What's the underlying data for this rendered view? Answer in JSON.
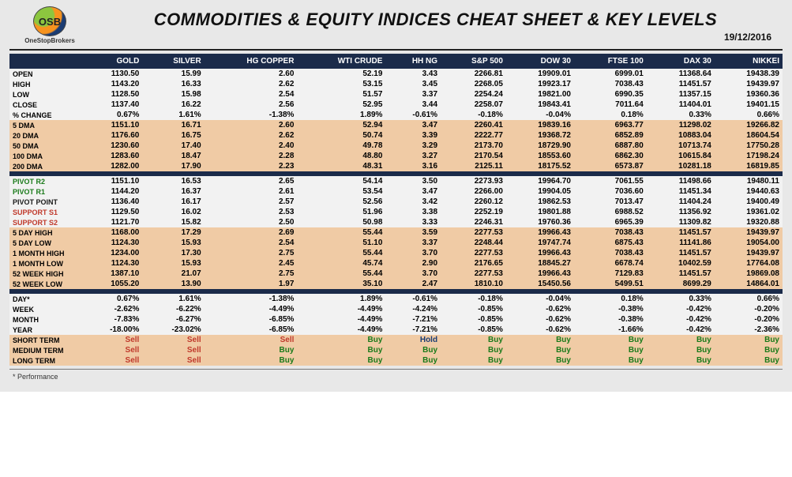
{
  "header": {
    "logo_mark": "OSB",
    "logo_sub": "OneStopBrokers",
    "title": "COMMODITIES & EQUITY INDICES CHEAT SHEET & KEY LEVELS",
    "date": "19/12/2016"
  },
  "colors": {
    "header_band": "#1b2b4a",
    "tan_row": "#f0cba5",
    "white_row": "#f2f2f2",
    "page_bg": "#e8e8e8",
    "buy": "#1a7a1a",
    "sell": "#c0392b",
    "hold": "#1b3c73"
  },
  "columns": [
    "GOLD",
    "SILVER",
    "HG COPPER",
    "WTI CRUDE",
    "HH NG",
    "S&P 500",
    "DOW 30",
    "FTSE 100",
    "DAX 30",
    "NIKKEI"
  ],
  "sections": [
    {
      "band": "white",
      "rows": [
        {
          "label": "OPEN",
          "vals": [
            "1130.50",
            "15.99",
            "2.60",
            "52.19",
            "3.43",
            "2266.81",
            "19909.01",
            "6999.01",
            "11368.64",
            "19438.39"
          ]
        },
        {
          "label": "HIGH",
          "vals": [
            "1143.20",
            "16.33",
            "2.62",
            "53.15",
            "3.45",
            "2268.05",
            "19923.17",
            "7038.43",
            "11451.57",
            "19439.97"
          ]
        },
        {
          "label": "LOW",
          "vals": [
            "1128.50",
            "15.98",
            "2.54",
            "51.57",
            "3.37",
            "2254.24",
            "19821.00",
            "6990.35",
            "11357.15",
            "19360.36"
          ]
        },
        {
          "label": "CLOSE",
          "vals": [
            "1137.40",
            "16.22",
            "2.56",
            "52.95",
            "3.44",
            "2258.07",
            "19843.41",
            "7011.64",
            "11404.01",
            "19401.15"
          ]
        },
        {
          "label": "% CHANGE",
          "vals": [
            "0.67%",
            "1.61%",
            "-1.38%",
            "1.89%",
            "-0.61%",
            "-0.18%",
            "-0.04%",
            "0.18%",
            "0.33%",
            "0.66%"
          ]
        }
      ]
    },
    {
      "band": "tan",
      "rows": [
        {
          "label": "5 DMA",
          "vals": [
            "1151.10",
            "16.71",
            "2.60",
            "52.94",
            "3.47",
            "2260.41",
            "19839.16",
            "6963.77",
            "11298.02",
            "19266.82"
          ]
        },
        {
          "label": "20 DMA",
          "vals": [
            "1176.60",
            "16.75",
            "2.62",
            "50.74",
            "3.39",
            "2222.77",
            "19368.72",
            "6852.89",
            "10883.04",
            "18604.54"
          ]
        },
        {
          "label": "50 DMA",
          "vals": [
            "1230.60",
            "17.40",
            "2.40",
            "49.78",
            "3.29",
            "2173.70",
            "18729.90",
            "6887.80",
            "10713.74",
            "17750.28"
          ]
        },
        {
          "label": "100 DMA",
          "vals": [
            "1283.60",
            "18.47",
            "2.28",
            "48.80",
            "3.27",
            "2170.54",
            "18553.60",
            "6862.30",
            "10615.84",
            "17198.24"
          ]
        },
        {
          "label": "200 DMA",
          "vals": [
            "1282.00",
            "17.90",
            "2.23",
            "48.31",
            "3.16",
            "2125.11",
            "18175.52",
            "6573.87",
            "10281.18",
            "16819.85"
          ]
        }
      ]
    },
    {
      "sep": true
    },
    {
      "band": "white",
      "rows": [
        {
          "label": "PIVOT R2",
          "label_class": "pivot-r",
          "vals": [
            "1151.10",
            "16.53",
            "2.65",
            "54.14",
            "3.50",
            "2273.93",
            "19964.70",
            "7061.55",
            "11498.66",
            "19480.11"
          ]
        },
        {
          "label": "PIVOT R1",
          "label_class": "pivot-r",
          "vals": [
            "1144.20",
            "16.37",
            "2.61",
            "53.54",
            "3.47",
            "2266.00",
            "19904.05",
            "7036.60",
            "11451.34",
            "19440.63"
          ]
        },
        {
          "label": "PIVOT POINT",
          "label_class": "pivot-p",
          "vals": [
            "1136.40",
            "16.17",
            "2.57",
            "52.56",
            "3.42",
            "2260.12",
            "19862.53",
            "7013.47",
            "11404.24",
            "19400.49"
          ]
        },
        {
          "label": "SUPPORT S1",
          "label_class": "support",
          "vals": [
            "1129.50",
            "16.02",
            "2.53",
            "51.96",
            "3.38",
            "2252.19",
            "19801.88",
            "6988.52",
            "11356.92",
            "19361.02"
          ]
        },
        {
          "label": "SUPPORT S2",
          "label_class": "support",
          "vals": [
            "1121.70",
            "15.82",
            "2.50",
            "50.98",
            "3.33",
            "2246.31",
            "19760.36",
            "6965.39",
            "11309.82",
            "19320.88"
          ]
        }
      ]
    },
    {
      "band": "tan",
      "rows": [
        {
          "label": "5 DAY HIGH",
          "vals": [
            "1168.00",
            "17.29",
            "2.69",
            "55.44",
            "3.59",
            "2277.53",
            "19966.43",
            "7038.43",
            "11451.57",
            "19439.97"
          ]
        },
        {
          "label": "5 DAY LOW",
          "vals": [
            "1124.30",
            "15.93",
            "2.54",
            "51.10",
            "3.37",
            "2248.44",
            "19747.74",
            "6875.43",
            "11141.86",
            "19054.00"
          ]
        },
        {
          "label": "1 MONTH HIGH",
          "vals": [
            "1234.00",
            "17.30",
            "2.75",
            "55.44",
            "3.70",
            "2277.53",
            "19966.43",
            "7038.43",
            "11451.57",
            "19439.97"
          ]
        },
        {
          "label": "1 MONTH LOW",
          "vals": [
            "1124.30",
            "15.93",
            "2.45",
            "45.74",
            "2.90",
            "2176.65",
            "18845.27",
            "6678.74",
            "10402.59",
            "17764.08"
          ]
        },
        {
          "label": "52 WEEK HIGH",
          "vals": [
            "1387.10",
            "21.07",
            "2.75",
            "55.44",
            "3.70",
            "2277.53",
            "19966.43",
            "7129.83",
            "11451.57",
            "19869.08"
          ]
        },
        {
          "label": "52 WEEK LOW",
          "vals": [
            "1055.20",
            "13.90",
            "1.97",
            "35.10",
            "2.47",
            "1810.10",
            "15450.56",
            "5499.51",
            "8699.29",
            "14864.01"
          ]
        }
      ]
    },
    {
      "sep": true
    },
    {
      "band": "white",
      "rows": [
        {
          "label": "DAY*",
          "vals": [
            "0.67%",
            "1.61%",
            "-1.38%",
            "1.89%",
            "-0.61%",
            "-0.18%",
            "-0.04%",
            "0.18%",
            "0.33%",
            "0.66%"
          ]
        },
        {
          "label": "WEEK",
          "vals": [
            "-2.62%",
            "-6.22%",
            "-4.49%",
            "-4.49%",
            "-4.24%",
            "-0.85%",
            "-0.62%",
            "-0.38%",
            "-0.42%",
            "-0.20%"
          ]
        },
        {
          "label": "MONTH",
          "vals": [
            "-7.83%",
            "-6.27%",
            "-6.85%",
            "-4.49%",
            "-7.21%",
            "-0.85%",
            "-0.62%",
            "-0.38%",
            "-0.42%",
            "-0.20%"
          ]
        },
        {
          "label": "YEAR",
          "vals": [
            "-18.00%",
            "-23.02%",
            "-6.85%",
            "-4.49%",
            "-7.21%",
            "-0.85%",
            "-0.62%",
            "-1.66%",
            "-0.42%",
            "-2.36%"
          ]
        }
      ]
    },
    {
      "band": "tan",
      "signals": true,
      "rows": [
        {
          "label": "SHORT TERM",
          "vals": [
            "Sell",
            "Sell",
            "Sell",
            "Buy",
            "Hold",
            "Buy",
            "Buy",
            "Buy",
            "Buy",
            "Buy"
          ]
        },
        {
          "label": "MEDIUM TERM",
          "vals": [
            "Sell",
            "Sell",
            "Buy",
            "Buy",
            "Buy",
            "Buy",
            "Buy",
            "Buy",
            "Buy",
            "Buy"
          ]
        },
        {
          "label": "LONG TERM",
          "vals": [
            "Sell",
            "Sell",
            "Buy",
            "Buy",
            "Buy",
            "Buy",
            "Buy",
            "Buy",
            "Buy",
            "Buy"
          ]
        }
      ]
    }
  ],
  "footnote": "* Performance"
}
